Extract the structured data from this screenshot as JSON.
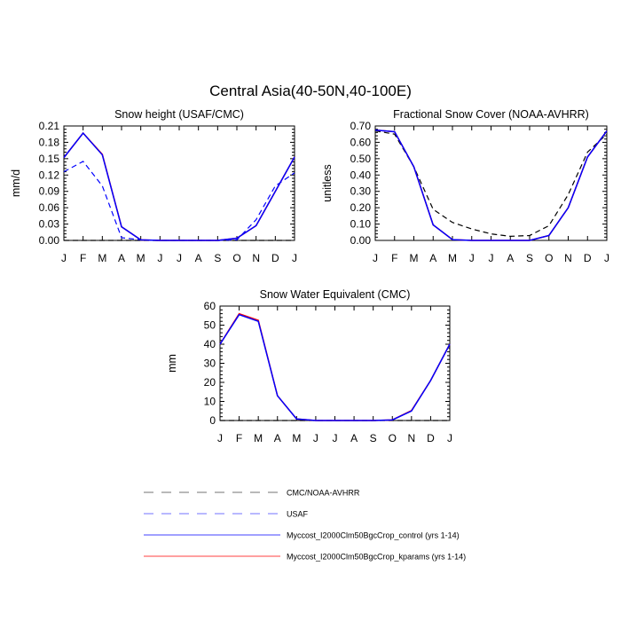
{
  "figure": {
    "title": "Central Asia(40-50N,40-100E)"
  },
  "months": [
    "J",
    "F",
    "M",
    "A",
    "M",
    "J",
    "J",
    "A",
    "S",
    "O",
    "N",
    "D",
    "J"
  ],
  "legend": {
    "entries": [
      {
        "label": "CMC/NOAA-AVHRR",
        "color": "#000000",
        "style": "dashed"
      },
      {
        "label": "USAF",
        "color": "#0000ff",
        "style": "dashed"
      },
      {
        "label": "Myccost_I2000Clm50BgcCrop_control (yrs 1-14)",
        "color": "#0000ff",
        "style": "solid"
      },
      {
        "label": "Myccost_I2000Clm50BgcCrop_kparams (yrs 1-14)",
        "color": "#ff0000",
        "style": "solid"
      }
    ]
  },
  "chart_data": [
    {
      "type": "line",
      "title": "Snow height (USAF/CMC)",
      "ylabel": "mm/d",
      "xlabel": "",
      "x": [
        "J",
        "F",
        "M",
        "A",
        "M",
        "J",
        "J",
        "A",
        "S",
        "O",
        "N",
        "D",
        "J"
      ],
      "ylim": [
        0,
        0.21
      ],
      "yticks": [
        "0.00",
        "0.03",
        "0.06",
        "0.09",
        "0.12",
        "0.15",
        "0.18",
        "0.21"
      ],
      "series": [
        {
          "name": "CMC/NOAA-AVHRR",
          "color": "#000000",
          "dash": true,
          "values": [
            0,
            0,
            0,
            0,
            0,
            0,
            0,
            0,
            0,
            0,
            0,
            0,
            0
          ]
        },
        {
          "name": "USAF",
          "color": "#0000ff",
          "dash": true,
          "values": [
            0.126,
            0.145,
            0.1,
            0.005,
            0.001,
            0,
            0,
            0,
            0,
            0.001,
            0.038,
            0.1,
            0.124
          ]
        },
        {
          "name": "Myccost_I2000Clm50BgcCrop_kparams (yrs 1-14)",
          "color": "#ff0000",
          "dash": false,
          "values": [
            0.152,
            0.197,
            0.158,
            0.025,
            0.001,
            0,
            0,
            0,
            0,
            0.004,
            0.027,
            0.09,
            0.153
          ]
        },
        {
          "name": "Myccost_I2000Clm50BgcCrop_control (yrs 1-14)",
          "color": "#0000ff",
          "dash": false,
          "values": [
            0.152,
            0.197,
            0.157,
            0.025,
            0.001,
            0,
            0,
            0,
            0,
            0.004,
            0.027,
            0.09,
            0.153
          ]
        }
      ]
    },
    {
      "type": "line",
      "title": "Fractional Snow Cover (NOAA-AVHRR)",
      "ylabel": "unitless",
      "xlabel": "",
      "x": [
        "J",
        "F",
        "M",
        "A",
        "M",
        "J",
        "J",
        "A",
        "S",
        "O",
        "N",
        "D",
        "J"
      ],
      "ylim": [
        0,
        0.7
      ],
      "yticks": [
        "0.00",
        "0.10",
        "0.20",
        "0.30",
        "0.40",
        "0.50",
        "0.60",
        "0.70"
      ],
      "series": [
        {
          "name": "CMC/NOAA-AVHRR",
          "color": "#000000",
          "dash": true,
          "values": [
            0.67,
            0.65,
            0.45,
            0.19,
            0.11,
            0.07,
            0.04,
            0.025,
            0.03,
            0.09,
            0.28,
            0.54,
            0.65
          ]
        },
        {
          "name": "Myccost_I2000Clm50BgcCrop_kparams (yrs 1-14)",
          "color": "#ff0000",
          "dash": false,
          "values": [
            0.675,
            0.665,
            0.45,
            0.095,
            0.005,
            0,
            0,
            0,
            0,
            0.03,
            0.2,
            0.51,
            0.67
          ]
        },
        {
          "name": "Myccost_I2000Clm50BgcCrop_control (yrs 1-14)",
          "color": "#0000ff",
          "dash": false,
          "values": [
            0.675,
            0.665,
            0.45,
            0.095,
            0.005,
            0,
            0,
            0,
            0,
            0.03,
            0.2,
            0.51,
            0.67
          ]
        }
      ]
    },
    {
      "type": "line",
      "title": "Snow Water Equivalent (CMC)",
      "ylabel": "mm",
      "xlabel": "",
      "x": [
        "J",
        "F",
        "M",
        "A",
        "M",
        "J",
        "J",
        "A",
        "S",
        "O",
        "N",
        "D",
        "J"
      ],
      "ylim": [
        0,
        60
      ],
      "yticks": [
        "0",
        "10",
        "20",
        "30",
        "40",
        "50",
        "60"
      ],
      "series": [
        {
          "name": "CMC/NOAA-AVHRR",
          "color": "#000000",
          "dash": true,
          "values": [
            0,
            0,
            0,
            0,
            0,
            0,
            0,
            0,
            0,
            0,
            0,
            0,
            0
          ]
        },
        {
          "name": "Myccost_I2000Clm50BgcCrop_kparams (yrs 1-14)",
          "color": "#ff0000",
          "dash": false,
          "values": [
            40,
            56,
            52.5,
            13,
            0.8,
            0,
            0,
            0,
            0,
            0.3,
            5.2,
            21,
            40
          ]
        },
        {
          "name": "Myccost_I2000Clm50BgcCrop_control (yrs 1-14)",
          "color": "#0000ff",
          "dash": false,
          "values": [
            40,
            55.5,
            52,
            13,
            0.8,
            0,
            0,
            0,
            0,
            0.3,
            5,
            21,
            40
          ]
        }
      ]
    }
  ]
}
